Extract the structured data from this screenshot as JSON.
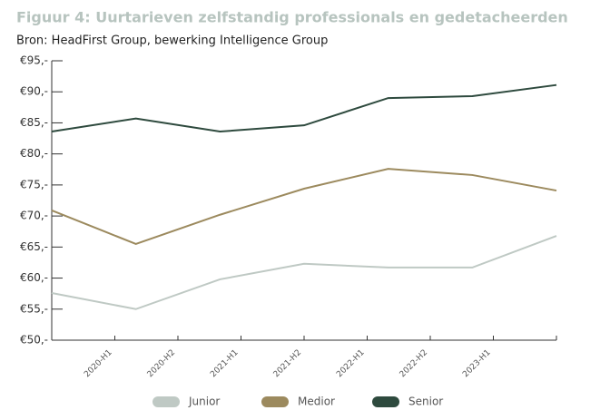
{
  "chart_data": {
    "type": "line",
    "title": "Figuur 4: Uurtarieven zelfstandig professionals en gedetacheerden",
    "subtitle": "Bron: HeadFirst Group, bewerking Intelligence Group",
    "categories": [
      "2020-H1",
      "2020-H2",
      "2021-H1",
      "2021-H2",
      "2022-H1",
      "2022-H2",
      "2023-H1"
    ],
    "series": [
      {
        "name": "Junior",
        "color": "#bfc9c4",
        "values": [
          57.6,
          55.0,
          59.8,
          62.3,
          61.7,
          61.7,
          66.8
        ]
      },
      {
        "name": "Medior",
        "color": "#9c8a5e",
        "values": [
          70.9,
          65.5,
          70.2,
          74.4,
          77.6,
          76.6,
          74.1
        ]
      },
      {
        "name": "Senior",
        "color": "#2e4a3e",
        "values": [
          83.6,
          85.7,
          83.6,
          84.6,
          89.0,
          89.3,
          91.1
        ]
      }
    ],
    "ylim": [
      50,
      95
    ],
    "yticks": [
      {
        "value": 50,
        "label": "€50,-"
      },
      {
        "value": 55,
        "label": "€55,-"
      },
      {
        "value": 60,
        "label": "€60,-"
      },
      {
        "value": 65,
        "label": "€65,-"
      },
      {
        "value": 70,
        "label": "€70,-"
      },
      {
        "value": 75,
        "label": "€75,-"
      },
      {
        "value": 80,
        "label": "€80,-"
      },
      {
        "value": 85,
        "label": "€85,-"
      },
      {
        "value": 90,
        "label": "€90,-"
      },
      {
        "value": 95,
        "label": "€95,-"
      }
    ],
    "grid": false,
    "legend": "bottom"
  }
}
